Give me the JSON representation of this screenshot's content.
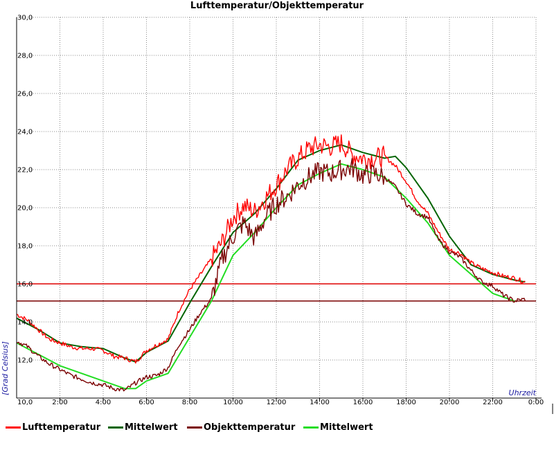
{
  "chart_data": {
    "type": "line",
    "title": "Lufttemperatur/Objekttemperatur",
    "xlabel": "Uhrzeit",
    "ylabel": "[Grad Celsius]",
    "xlim": [
      0,
      24
    ],
    "ylim": [
      10,
      30
    ],
    "x_ticks": [
      "2:00",
      "4:00",
      "6:00",
      "8:00",
      "10:00",
      "12:00",
      "14:00",
      "16:00",
      "18:00",
      "20:00",
      "22:00",
      "0:00"
    ],
    "y_ticks": [
      "10,0",
      "12,0",
      "14,0",
      "16,0",
      "18,0",
      "20,0",
      "22,0",
      "24,0",
      "26,0",
      "28,0",
      "30,0"
    ],
    "grid": true,
    "reference_lines": [
      {
        "name": "",
        "y": 16.0,
        "color": "#dd0000"
      },
      {
        "name": "",
        "y": 15.1,
        "color": "#7a0000"
      }
    ],
    "series": [
      {
        "name": "Lufttemperatur",
        "color": "#ff0000",
        "noisy": true,
        "x": [
          0,
          0.5,
          1,
          1.5,
          2,
          2.5,
          3,
          3.5,
          4,
          4.5,
          5,
          5.5,
          6,
          6.5,
          7,
          7.5,
          8,
          8.5,
          9,
          9.5,
          10,
          10.5,
          11,
          11.5,
          12,
          12.5,
          13,
          13.5,
          14,
          14.5,
          15,
          15.5,
          16,
          16.5,
          17,
          17.5,
          18,
          18.5,
          19,
          19.5,
          20,
          20.5,
          21,
          21.5,
          22,
          22.5,
          23,
          23.5
        ],
        "y": [
          14.4,
          14.1,
          13.6,
          13.1,
          12.9,
          12.7,
          12.6,
          12.6,
          12.5,
          12.2,
          12.1,
          11.9,
          12.5,
          12.8,
          13.1,
          14.6,
          15.7,
          16.5,
          17.3,
          18.2,
          19.5,
          20.1,
          19.8,
          20.5,
          21.2,
          22.0,
          22.6,
          23.1,
          23.3,
          23.2,
          23.4,
          22.8,
          22.6,
          22.6,
          22.7,
          22.2,
          21.4,
          20.4,
          19.7,
          18.7,
          17.8,
          17.6,
          17.1,
          16.8,
          16.6,
          16.4,
          16.3,
          16.1
        ]
      },
      {
        "name": "Mittelwert",
        "color": "#006400",
        "noisy": false,
        "x": [
          0,
          1,
          2,
          3,
          4,
          5,
          5.5,
          6,
          7,
          8,
          9,
          10,
          11,
          12,
          13,
          14,
          15,
          16,
          17,
          17.5,
          18,
          19,
          20,
          21,
          22,
          23,
          23.5
        ],
        "y": [
          14.2,
          13.6,
          12.9,
          12.7,
          12.6,
          12.1,
          11.9,
          12.4,
          13.0,
          15.0,
          16.9,
          18.7,
          19.7,
          21.0,
          22.5,
          23.0,
          23.3,
          22.9,
          22.6,
          22.7,
          22.1,
          20.5,
          18.5,
          17.0,
          16.5,
          16.2,
          16.1
        ]
      },
      {
        "name": "Objekttemperatur",
        "color": "#7a0000",
        "noisy": true,
        "x": [
          0,
          0.5,
          1,
          1.5,
          2,
          2.5,
          3,
          3.5,
          4,
          4.5,
          5,
          5.5,
          6,
          6.5,
          7,
          7.5,
          8,
          8.5,
          9,
          9.5,
          10,
          10.5,
          11,
          11.5,
          12,
          12.5,
          13,
          13.5,
          14,
          14.5,
          15,
          15.5,
          16,
          16.5,
          17,
          17.5,
          18,
          18.5,
          19,
          19.5,
          20,
          20.5,
          21,
          21.5,
          22,
          22.5,
          23,
          23.5
        ],
        "y": [
          13.0,
          12.7,
          12.2,
          11.8,
          11.5,
          11.2,
          11.0,
          10.8,
          10.7,
          10.5,
          10.4,
          10.8,
          11.1,
          11.2,
          11.6,
          12.8,
          13.6,
          14.5,
          15.2,
          17.3,
          18.5,
          19.2,
          18.4,
          19.5,
          20.2,
          20.6,
          21.2,
          21.6,
          21.9,
          21.8,
          22.0,
          22.1,
          21.7,
          21.8,
          21.6,
          21.1,
          20.2,
          19.7,
          19.5,
          18.3,
          17.7,
          17.4,
          16.7,
          16.1,
          15.9,
          15.4,
          15.1,
          15.2
        ]
      },
      {
        "name": "Mittelwert",
        "color": "#22dd22",
        "noisy": false,
        "x": [
          0,
          1,
          2,
          3,
          4,
          5,
          5.5,
          6,
          7,
          8,
          9,
          10,
          11,
          12,
          13,
          14,
          15,
          16,
          17,
          18,
          19,
          20,
          21,
          22,
          23
        ],
        "y": [
          12.9,
          12.3,
          11.7,
          11.3,
          10.9,
          10.5,
          10.5,
          10.9,
          11.3,
          13.2,
          15.1,
          17.5,
          18.7,
          20.0,
          21.2,
          21.8,
          22.3,
          22.0,
          21.6,
          20.5,
          19.2,
          17.5,
          16.5,
          15.5,
          15.1
        ]
      }
    ]
  }
}
